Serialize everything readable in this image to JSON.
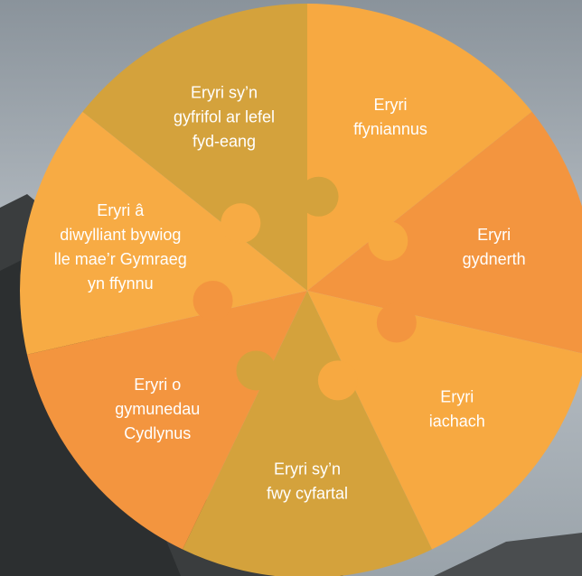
{
  "segments": [
    {
      "lines": [
        "Eryri",
        "ffyniannus"
      ]
    },
    {
      "lines": [
        "Eryri",
        "gydnerth"
      ]
    },
    {
      "lines": [
        "Eryri",
        "iachach"
      ]
    },
    {
      "lines": [
        "Eryri sy’n",
        "fwy cyfartal"
      ]
    },
    {
      "lines": [
        "Eryri o",
        "gymunedau",
        "Cydlynus"
      ]
    },
    {
      "lines": [
        "Eryri â",
        "diwylliant bywiog",
        "lle mae’r Gymraeg",
        "yn ffynnu"
      ]
    },
    {
      "lines": [
        "Eryri sy’n",
        "gyfrifol ar lefel",
        "fyd-eang"
      ]
    }
  ]
}
